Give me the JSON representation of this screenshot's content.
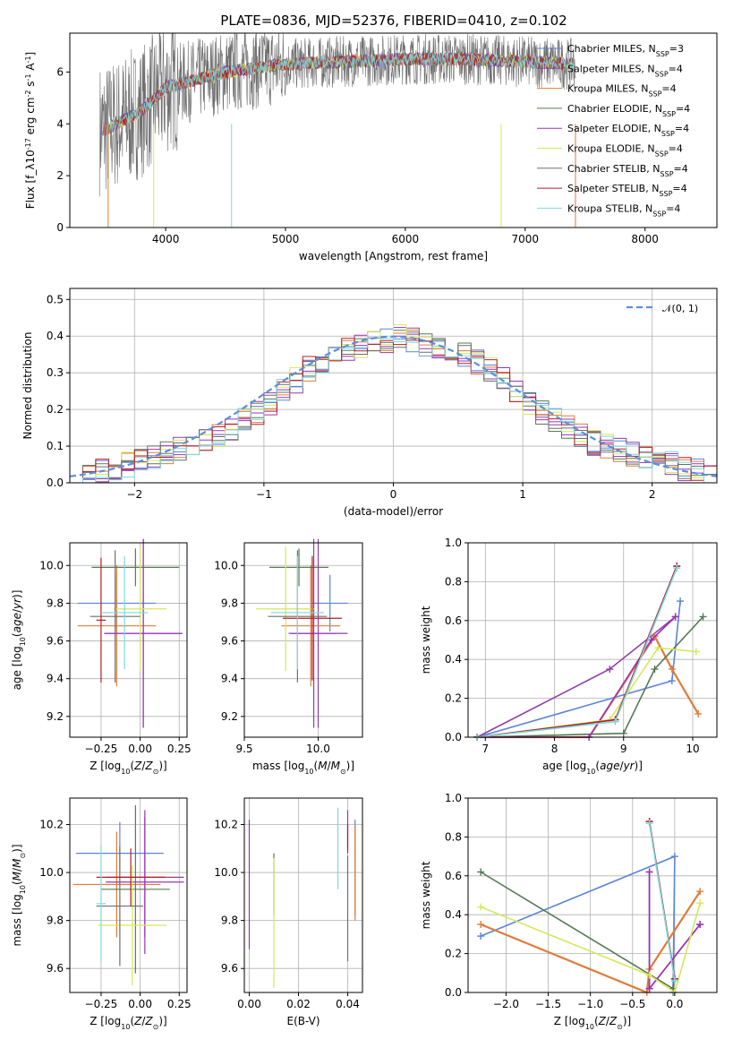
{
  "figure": {
    "title": "PLATE=0836, MJD=52376, FIBERID=0410, z=0.102"
  },
  "colors": {
    "chabrier_miles": "#5b84d8",
    "salpeter_miles": "#8e3fa8",
    "kroupa_miles": "#e07b39",
    "chabrier_elodie": "#557a55",
    "salpeter_elodie": "#9b33b8",
    "kroupa_elodie": "#d4e85a",
    "chabrier_stelib": "#6e6e6e",
    "salpeter_stelib": "#b51f22",
    "kroupa_stelib": "#7fd6dd",
    "normal": "#5b8fd9"
  },
  "chart_data": [
    {
      "id": "spectrum",
      "type": "line",
      "xlabel": "wavelength [Angstrom, rest frame]",
      "ylabel": "Flux [f_λ10^-17 erg cm^-2 s^-1 A^-1]",
      "xlim": [
        3200,
        8600
      ],
      "ylim": [
        0,
        7.5
      ],
      "xticks": [
        "4000",
        "5000",
        "6000",
        "7000",
        "8000"
      ],
      "yticks": [
        "0",
        "2",
        "4",
        "6"
      ],
      "grid": false,
      "legend_position": "top-right",
      "series": [
        {
          "name": "Chabrier MILES, N_SSP=3"
        },
        {
          "name": "Salpeter MILES, N_SSP=4"
        },
        {
          "name": "Kroupa MILES, N_SSP=4"
        },
        {
          "name": "Chabrier ELODIE, N_SSP=4"
        },
        {
          "name": "Salpeter ELODIE, N_SSP=4"
        },
        {
          "name": "Kroupa ELODIE, N_SSP=4"
        },
        {
          "name": "Chabrier STELIB, N_SSP=4"
        },
        {
          "name": "Salpeter STELIB, N_SSP=4"
        },
        {
          "name": "Kroupa STELIB, N_SSP=4"
        }
      ],
      "approx_continuum": {
        "x": [
          3500,
          3800,
          4000,
          4500,
          5000,
          5500,
          6000,
          6500,
          7000,
          7400
        ],
        "y": [
          3.8,
          4.5,
          5.4,
          6.0,
          6.3,
          6.4,
          6.5,
          6.5,
          6.4,
          6.3
        ]
      }
    },
    {
      "id": "residuals",
      "type": "line",
      "xlabel": "(data-model)/error",
      "ylabel": "Normed distribution",
      "xlim": [
        -2.5,
        2.5
      ],
      "ylim": [
        0,
        0.53
      ],
      "xticks": [
        "−2",
        "−1",
        "0",
        "1",
        "2"
      ],
      "yticks": [
        "0.0",
        "0.1",
        "0.2",
        "0.3",
        "0.4",
        "0.5"
      ],
      "grid": true,
      "legend_position": "top-right",
      "legend": "𝒩(0, 1)",
      "bin_width": 0.1,
      "histogram_ref": [
        0.03,
        0.02,
        0.03,
        0.04,
        0.05,
        0.06,
        0.07,
        0.08,
        0.09,
        0.1,
        0.12,
        0.13,
        0.15,
        0.17,
        0.19,
        0.22,
        0.25,
        0.28,
        0.31,
        0.33,
        0.35,
        0.36,
        0.37,
        0.38,
        0.39,
        0.4,
        0.39,
        0.38,
        0.37,
        0.36,
        0.35,
        0.33,
        0.31,
        0.28,
        0.25,
        0.22,
        0.19,
        0.17,
        0.15,
        0.13,
        0.11,
        0.1,
        0.09,
        0.08,
        0.07,
        0.06,
        0.05,
        0.04,
        0.03,
        0.03
      ]
    },
    {
      "id": "age_vs_Z",
      "type": "scatter",
      "xlabel": "Z [log10(Z/Z⊙)]",
      "ylabel": "age [log10(age/yr)]",
      "xlim": [
        -0.45,
        0.3
      ],
      "ylim": [
        9.09,
        10.12
      ],
      "xticks": [
        "−0.25",
        "0.00",
        "0.25"
      ],
      "yticks": [
        "9.2",
        "9.4",
        "9.6",
        "9.8",
        "10.0"
      ],
      "grid": true,
      "points": [
        {
          "series": "Chabrier MILES",
          "x": -0.15,
          "y": 9.8,
          "xerr": 0.25,
          "yerr": 0.15
        },
        {
          "series": "Salpeter MILES",
          "x": 0.02,
          "y": 9.64,
          "xerr": 0.25,
          "yerr": 0.5
        },
        {
          "series": "Kroupa MILES",
          "x": -0.15,
          "y": 9.68,
          "xerr": 0.25,
          "yerr": 0.32
        },
        {
          "series": "Chabrier ELODIE",
          "x": -0.03,
          "y": 9.99,
          "xerr": 0.28,
          "yerr": 0.1
        },
        {
          "series": "Salpeter ELODIE",
          "x": 0.02,
          "y": 9.64,
          "xerr": 0.25,
          "yerr": 0.5
        },
        {
          "series": "Kroupa ELODIE",
          "x": 0.0,
          "y": 9.77,
          "xerr": 0.17,
          "yerr": 0.33
        },
        {
          "series": "Chabrier STELIB",
          "x": -0.16,
          "y": 9.73,
          "xerr": 0.16,
          "yerr": 0.35
        },
        {
          "series": "Salpeter STELIB",
          "x": -0.25,
          "y": 9.71,
          "xerr": 0.03,
          "yerr": 0.33
        },
        {
          "series": "Kroupa STELIB",
          "x": -0.1,
          "y": 9.75,
          "xerr": 0.15,
          "yerr": 0.3
        }
      ]
    },
    {
      "id": "age_vs_mass",
      "type": "scatter",
      "xlabel": "mass [log10(M/M⊙)]",
      "ylabel": "",
      "xlim": [
        9.5,
        10.3
      ],
      "ylim": [
        9.09,
        10.12
      ],
      "xticks": [
        "9.5",
        "10.0"
      ],
      "yticks": [
        "9.2",
        "9.4",
        "9.6",
        "9.8",
        "10.0"
      ],
      "grid": true,
      "points": [
        {
          "series": "Chabrier MILES",
          "x": 10.08,
          "y": 9.8,
          "xerr": 0.12,
          "yerr": 0.15
        },
        {
          "series": "Salpeter MILES",
          "x": 10.0,
          "y": 9.64,
          "xerr": 0.2,
          "yerr": 0.5
        },
        {
          "series": "Kroupa MILES",
          "x": 9.95,
          "y": 9.68,
          "xerr": 0.2,
          "yerr": 0.32
        },
        {
          "series": "Chabrier ELODIE",
          "x": 9.87,
          "y": 9.99,
          "xerr": 0.2,
          "yerr": 0.1
        },
        {
          "series": "Salpeter ELODIE",
          "x": 9.97,
          "y": 9.64,
          "xerr": 0.15,
          "yerr": 0.5
        },
        {
          "series": "Kroupa ELODIE",
          "x": 9.78,
          "y": 9.77,
          "xerr": 0.2,
          "yerr": 0.33
        },
        {
          "series": "Chabrier STELIB",
          "x": 9.86,
          "y": 9.73,
          "xerr": 0.2,
          "yerr": 0.35
        },
        {
          "series": "Salpeter STELIB",
          "x": 9.96,
          "y": 9.72,
          "xerr": 0.2,
          "yerr": 0.33
        },
        {
          "series": "Kroupa STELIB",
          "x": 9.86,
          "y": 9.75,
          "xerr": 0.18,
          "yerr": 0.3
        }
      ]
    },
    {
      "id": "massweight_vs_age",
      "type": "line",
      "xlabel": "age [log10(age/yr)]",
      "ylabel": "mass weight",
      "xlim": [
        6.75,
        10.35
      ],
      "ylim": [
        0,
        1.0
      ],
      "xticks": [
        "7",
        "8",
        "9",
        "10"
      ],
      "yticks": [
        "0.0",
        "0.2",
        "0.4",
        "0.6",
        "0.8",
        "1.0"
      ],
      "grid": true,
      "series": [
        {
          "name": "Chabrier MILES",
          "x": [
            6.88,
            9.7,
            9.82
          ],
          "y": [
            0.0,
            0.29,
            0.7
          ]
        },
        {
          "name": "Salpeter MILES",
          "x": [
            6.88,
            8.8,
            9.75
          ],
          "y": [
            0.0,
            0.35,
            0.62
          ]
        },
        {
          "name": "Kroupa MILES",
          "x": [
            6.88,
            8.5,
            9.45,
            9.7,
            10.08
          ],
          "y": [
            0.0,
            0.0,
            0.52,
            0.35,
            0.12
          ]
        },
        {
          "name": "Chabrier ELODIE",
          "x": [
            6.88,
            9.0,
            9.45,
            10.15
          ],
          "y": [
            0.0,
            0.02,
            0.35,
            0.62
          ]
        },
        {
          "name": "Salpeter ELODIE",
          "x": [
            6.88,
            8.5,
            9.4,
            9.75
          ],
          "y": [
            0.0,
            0.0,
            0.5,
            0.62
          ]
        },
        {
          "name": "Kroupa ELODIE",
          "x": [
            6.88,
            8.8,
            9.5,
            10.05
          ],
          "y": [
            0.0,
            0.09,
            0.46,
            0.44
          ]
        },
        {
          "name": "Chabrier STELIB",
          "x": [
            6.88,
            8.88,
            9.77
          ],
          "y": [
            0.0,
            0.09,
            0.88
          ]
        },
        {
          "name": "Salpeter STELIB",
          "x": [
            6.88,
            8.88,
            9.77
          ],
          "y": [
            0.0,
            0.09,
            0.88
          ]
        },
        {
          "name": "Kroupa STELIB",
          "x": [
            6.88,
            8.88,
            9.77
          ],
          "y": [
            0.0,
            0.08,
            0.87
          ]
        }
      ]
    },
    {
      "id": "mass_vs_Z",
      "type": "scatter",
      "xlabel": "Z [log10(Z/Z⊙)]",
      "ylabel": "mass [log10(M/M⊙)]",
      "xlim": [
        -0.45,
        0.3
      ],
      "ylim": [
        9.5,
        10.31
      ],
      "xticks": [
        "−0.25",
        "0.00",
        "0.25"
      ],
      "yticks": [
        "9.6",
        "9.8",
        "10.0",
        "10.2"
      ],
      "grid": true,
      "points": [
        {
          "series": "Chabrier MILES",
          "x": -0.13,
          "y": 10.08,
          "xerr": 0.28,
          "yerr": 0.13
        },
        {
          "series": "Salpeter MILES",
          "x": 0.03,
          "y": 9.98,
          "xerr": 0.25,
          "yerr": 0.25
        },
        {
          "series": "Kroupa MILES",
          "x": -0.15,
          "y": 9.95,
          "xerr": 0.28,
          "yerr": 0.22
        },
        {
          "series": "Chabrier ELODIE",
          "x": -0.03,
          "y": 9.93,
          "xerr": 0.22,
          "yerr": 0.35
        },
        {
          "series": "Salpeter ELODIE",
          "x": 0.03,
          "y": 9.96,
          "xerr": 0.25,
          "yerr": 0.3
        },
        {
          "series": "Kroupa ELODIE",
          "x": -0.05,
          "y": 9.78,
          "xerr": 0.22,
          "yerr": 0.25
        },
        {
          "series": "Chabrier STELIB",
          "x": -0.13,
          "y": 9.86,
          "xerr": 0.15,
          "yerr": 0.25
        },
        {
          "series": "Salpeter STELIB",
          "x": -0.06,
          "y": 9.98,
          "xerr": 0.22,
          "yerr": 0.12
        },
        {
          "series": "Kroupa STELIB",
          "x": -0.25,
          "y": 9.87,
          "xerr": 0.03,
          "yerr": 0.24
        }
      ]
    },
    {
      "id": "mass_vs_ebv",
      "type": "scatter",
      "xlabel": "E(B-V)",
      "ylabel": "",
      "xlim": [
        -0.002,
        0.046
      ],
      "ylim": [
        9.5,
        10.31
      ],
      "xticks": [
        "0.00",
        "0.02",
        "0.04"
      ],
      "yticks": [
        "9.6",
        "9.8",
        "10.0",
        "10.2"
      ],
      "grid": true,
      "points": [
        {
          "series": "Chabrier MILES",
          "x": 0.043,
          "y": 10.02,
          "yerr": 0.2
        },
        {
          "series": "Salpeter MILES",
          "x": 0.04,
          "y": 10.18,
          "yerr": 0.08
        },
        {
          "series": "Kroupa MILES",
          "x": 0.043,
          "y": 10.0,
          "yerr": 0.2
        },
        {
          "series": "Chabrier ELODIE",
          "x": 0.01,
          "y": 9.95,
          "yerr": 0.13
        },
        {
          "series": "Salpeter ELODIE",
          "x": 0.0,
          "y": 9.95,
          "yerr": 0.27
        },
        {
          "series": "Kroupa ELODIE",
          "x": 0.01,
          "y": 9.79,
          "yerr": 0.27
        },
        {
          "series": "Chabrier STELIB",
          "x": 0.04,
          "y": 9.85,
          "yerr": 0.22
        },
        {
          "series": "Salpeter STELIB",
          "x": 0.04,
          "y": 10.14,
          "yerr": 0.06
        },
        {
          "series": "Kroupa STELIB",
          "x": 0.036,
          "y": 10.1,
          "yerr": 0.17
        }
      ]
    },
    {
      "id": "massweight_vs_Z",
      "type": "line",
      "xlabel": "Z [log10(Z/Z⊙)]",
      "ylabel": "mass weight",
      "xlim": [
        -2.45,
        0.5
      ],
      "ylim": [
        0,
        1.0
      ],
      "xticks": [
        "−2.0",
        "−1.5",
        "−1.0",
        "−0.5",
        "0.0"
      ],
      "yticks": [
        "0.0",
        "0.2",
        "0.4",
        "0.6",
        "0.8",
        "1.0"
      ],
      "grid": true,
      "series": [
        {
          "name": "Chabrier MILES",
          "x": [
            -2.3,
            0.0,
            -0.02
          ],
          "y": [
            0.29,
            0.7,
            0.0
          ]
        },
        {
          "name": "Salpeter MILES",
          "x": [
            -0.3,
            -0.3,
            0.3
          ],
          "y": [
            0.62,
            0.02,
            0.35
          ]
        },
        {
          "name": "Kroupa MILES",
          "x": [
            -2.3,
            -0.33,
            -0.3,
            0.3
          ],
          "y": [
            0.35,
            0.0,
            0.12,
            0.52
          ]
        },
        {
          "name": "Chabrier ELODIE",
          "x": [
            -2.3,
            -0.02,
            0.0
          ],
          "y": [
            0.62,
            0.02,
            0.07
          ]
        },
        {
          "name": "Salpeter ELODIE",
          "x": [
            -0.3,
            -0.3,
            0.3
          ],
          "y": [
            0.62,
            0.02,
            0.35
          ]
        },
        {
          "name": "Kroupa ELODIE",
          "x": [
            -2.3,
            -0.3,
            0.0,
            0.3
          ],
          "y": [
            0.44,
            0.09,
            0.0,
            0.46
          ]
        },
        {
          "name": "Chabrier STELIB",
          "x": [
            -0.3,
            0.0
          ],
          "y": [
            0.88,
            0.07
          ]
        },
        {
          "name": "Salpeter STELIB",
          "x": [
            -0.3,
            0.0
          ],
          "y": [
            0.88,
            0.07
          ]
        },
        {
          "name": "Kroupa STELIB",
          "x": [
            -0.3,
            0.0
          ],
          "y": [
            0.87,
            0.06
          ]
        }
      ]
    }
  ]
}
